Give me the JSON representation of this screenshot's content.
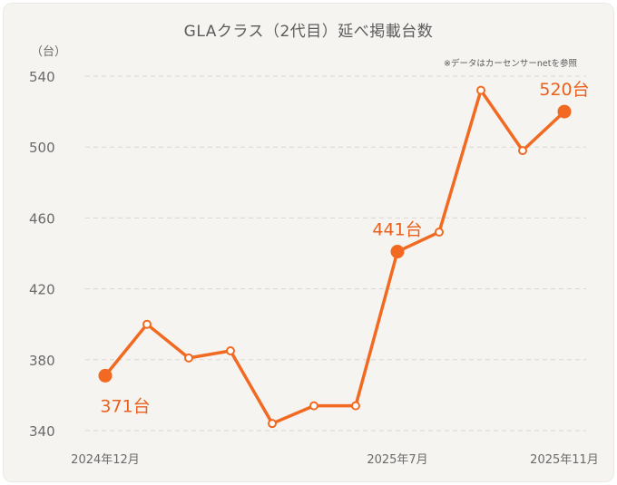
{
  "chart_data": {
    "type": "line",
    "title": "GLAクラス（2代目）延べ掲載台数",
    "unit_label": "（台）",
    "note": "※データはカーセンサーnetを参照",
    "x": [
      "2024年12月",
      "2025年1月",
      "2025年2月",
      "2025年3月",
      "2025年4月",
      "2025年5月",
      "2025年6月",
      "2025年7月",
      "2025年8月",
      "2025年9月",
      "2025年10月",
      "2025年11月"
    ],
    "x_tick_labels": [
      "2024年12月",
      "2025年7月",
      "2025年11月"
    ],
    "series": [
      {
        "values": [
          371,
          400,
          381,
          385,
          344,
          354,
          354,
          441,
          452,
          532,
          498,
          520
        ]
      }
    ],
    "callouts": [
      {
        "index": 0,
        "text": "371台"
      },
      {
        "index": 7,
        "text": "441台"
      },
      {
        "index": 11,
        "text": "520台"
      }
    ],
    "ylim": [
      340,
      540
    ],
    "yticks": [
      340,
      380,
      420,
      460,
      500,
      540
    ],
    "grid": true,
    "colors": {
      "line": "#f26a21",
      "label": "#e8611d",
      "grid": "#d9d6d1",
      "axis_text": "#6a6a6a"
    }
  }
}
